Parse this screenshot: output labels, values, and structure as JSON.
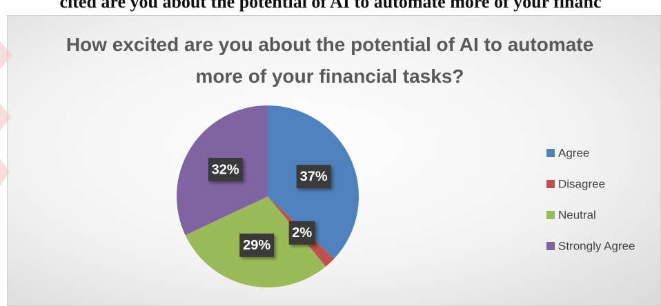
{
  "page_heading": "cited are you about the potential of AI to automate more of your financ",
  "chart_data": {
    "type": "pie",
    "title": "How excited are you about the potential of AI to automate more of your financial tasks?",
    "categories": [
      "Agree",
      "Disagree",
      "Neutral",
      "Strongly Agree"
    ],
    "values": [
      37,
      2,
      29,
      32
    ],
    "value_labels": [
      "37%",
      "2%",
      "29%",
      "32%"
    ],
    "colors": [
      "#4f81bd",
      "#c0504d",
      "#9bbb59",
      "#8064a2"
    ],
    "legend": "right"
  }
}
